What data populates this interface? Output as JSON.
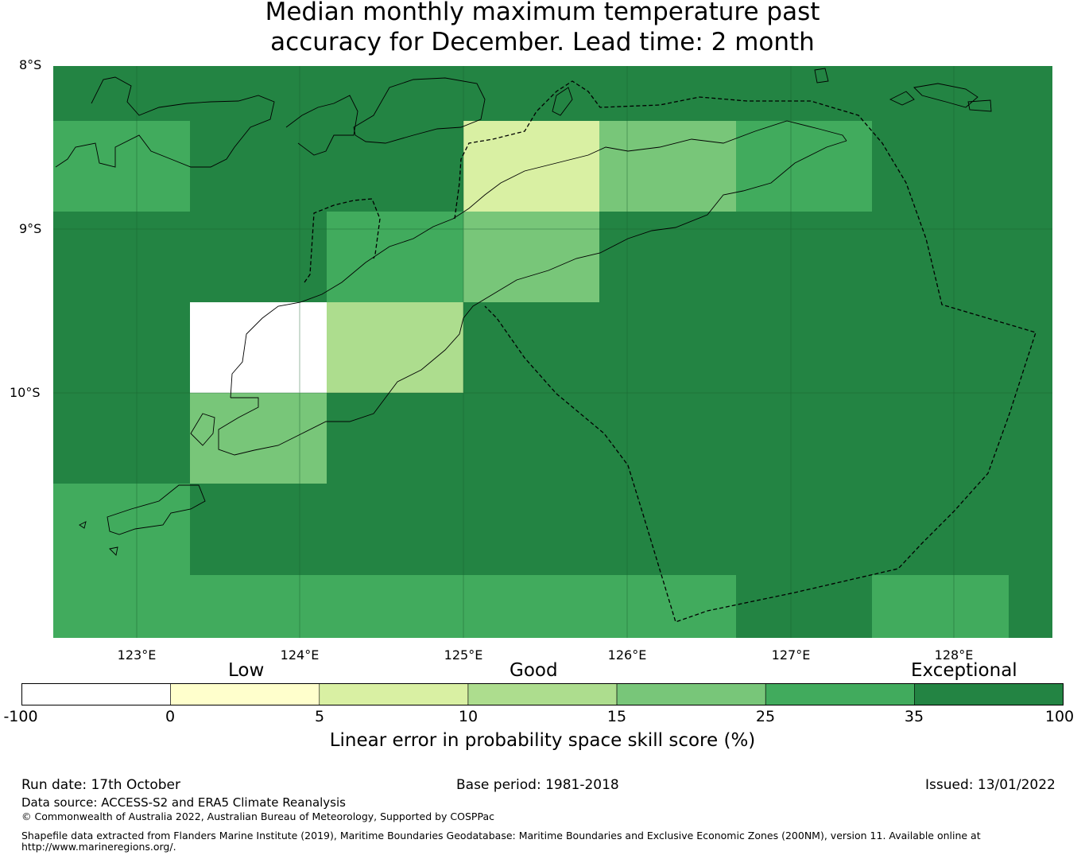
{
  "title_line1": "Median monthly maximum temperature past",
  "title_line2": "accuracy for December. Lead time: 2 month",
  "axes": {
    "lat_labels": [
      "8°S",
      "9°S",
      "10°S"
    ],
    "lon_labels": [
      "123°E",
      "124°E",
      "125°E",
      "126°E",
      "127°E",
      "128°E"
    ],
    "lon_range": [
      122.5,
      128.6
    ],
    "lat_range": [
      -11.5,
      -8
    ]
  },
  "colorbar": {
    "category_labels": [
      "Low",
      "Good",
      "Exceptional"
    ],
    "ticks": [
      "-100",
      "0",
      "5",
      "10",
      "15",
      "25",
      "35",
      "100"
    ],
    "colors": [
      "#ffffff",
      "#ffffcc",
      "#d9f0a3",
      "#addd8e",
      "#78c679",
      "#41ab5d",
      "#238443"
    ],
    "title": "Linear error in probability space skill score (%)"
  },
  "grid_cells": [
    {
      "row": 0,
      "col": 0,
      "bin": 6
    },
    {
      "row": 0,
      "col": 1,
      "bin": 6
    },
    {
      "row": 0,
      "col": 2,
      "bin": 6
    },
    {
      "row": 0,
      "col": 3,
      "bin": 6
    },
    {
      "row": 0,
      "col": 4,
      "bin": 6
    },
    {
      "row": 0,
      "col": 5,
      "bin": 6
    },
    {
      "row": 0,
      "col": 6,
      "bin": 6
    },
    {
      "row": 0,
      "col": 7,
      "bin": 6
    },
    {
      "row": 1,
      "col": 0,
      "bin": 5
    },
    {
      "row": 1,
      "col": 1,
      "bin": 6
    },
    {
      "row": 1,
      "col": 2,
      "bin": 6
    },
    {
      "row": 1,
      "col": 3,
      "bin": 2
    },
    {
      "row": 1,
      "col": 4,
      "bin": 4
    },
    {
      "row": 1,
      "col": 5,
      "bin": 5
    },
    {
      "row": 1,
      "col": 6,
      "bin": 6
    },
    {
      "row": 1,
      "col": 7,
      "bin": 6
    },
    {
      "row": 2,
      "col": 0,
      "bin": 6
    },
    {
      "row": 2,
      "col": 1,
      "bin": 6
    },
    {
      "row": 2,
      "col": 2,
      "bin": 5
    },
    {
      "row": 2,
      "col": 3,
      "bin": 4
    },
    {
      "row": 2,
      "col": 4,
      "bin": 6
    },
    {
      "row": 2,
      "col": 5,
      "bin": 6
    },
    {
      "row": 2,
      "col": 6,
      "bin": 6
    },
    {
      "row": 2,
      "col": 7,
      "bin": 6
    },
    {
      "row": 3,
      "col": 0,
      "bin": 6
    },
    {
      "row": 3,
      "col": 1,
      "bin": 0
    },
    {
      "row": 3,
      "col": 2,
      "bin": 3
    },
    {
      "row": 3,
      "col": 3,
      "bin": 6
    },
    {
      "row": 3,
      "col": 4,
      "bin": 6
    },
    {
      "row": 3,
      "col": 5,
      "bin": 6
    },
    {
      "row": 3,
      "col": 6,
      "bin": 6
    },
    {
      "row": 3,
      "col": 7,
      "bin": 6
    },
    {
      "row": 4,
      "col": 0,
      "bin": 6
    },
    {
      "row": 4,
      "col": 1,
      "bin": 4
    },
    {
      "row": 4,
      "col": 2,
      "bin": 6
    },
    {
      "row": 4,
      "col": 3,
      "bin": 6
    },
    {
      "row": 4,
      "col": 4,
      "bin": 6
    },
    {
      "row": 4,
      "col": 5,
      "bin": 6
    },
    {
      "row": 4,
      "col": 6,
      "bin": 6
    },
    {
      "row": 4,
      "col": 7,
      "bin": 6
    },
    {
      "row": 5,
      "col": 0,
      "bin": 5
    },
    {
      "row": 5,
      "col": 1,
      "bin": 6
    },
    {
      "row": 5,
      "col": 2,
      "bin": 6
    },
    {
      "row": 5,
      "col": 3,
      "bin": 6
    },
    {
      "row": 5,
      "col": 4,
      "bin": 6
    },
    {
      "row": 5,
      "col": 5,
      "bin": 6
    },
    {
      "row": 5,
      "col": 6,
      "bin": 6
    },
    {
      "row": 5,
      "col": 7,
      "bin": 6
    },
    {
      "row": 6,
      "col": 0,
      "bin": 5
    },
    {
      "row": 6,
      "col": 1,
      "bin": 5
    },
    {
      "row": 6,
      "col": 2,
      "bin": 5
    },
    {
      "row": 6,
      "col": 3,
      "bin": 5
    },
    {
      "row": 6,
      "col": 4,
      "bin": 5
    },
    {
      "row": 6,
      "col": 5,
      "bin": 6
    },
    {
      "row": 6,
      "col": 6,
      "bin": 5
    },
    {
      "row": 6,
      "col": 7,
      "bin": 6
    }
  ],
  "footer": {
    "run_date": "Run date: 17th October",
    "base_period": "Base period: 1981-2018",
    "issued": "Issued: 13/01/2022",
    "data_source": "Data source: ACCESS-S2 and ERA5 Climate Reanalysis",
    "copyright": "© Commonwealth of Australia 2022, Australian Bureau of Meteorology, Supported by COSPPac",
    "shapefile_line1": "Shapefile data extracted from Flanders Marine Institute (2019), Maritime Boundaries Geodatabase: Maritime Boundaries and Exclusive Economic Zones (200NM), version 11. Available online at",
    "shapefile_line2": "http://www.marineregions.org/."
  }
}
